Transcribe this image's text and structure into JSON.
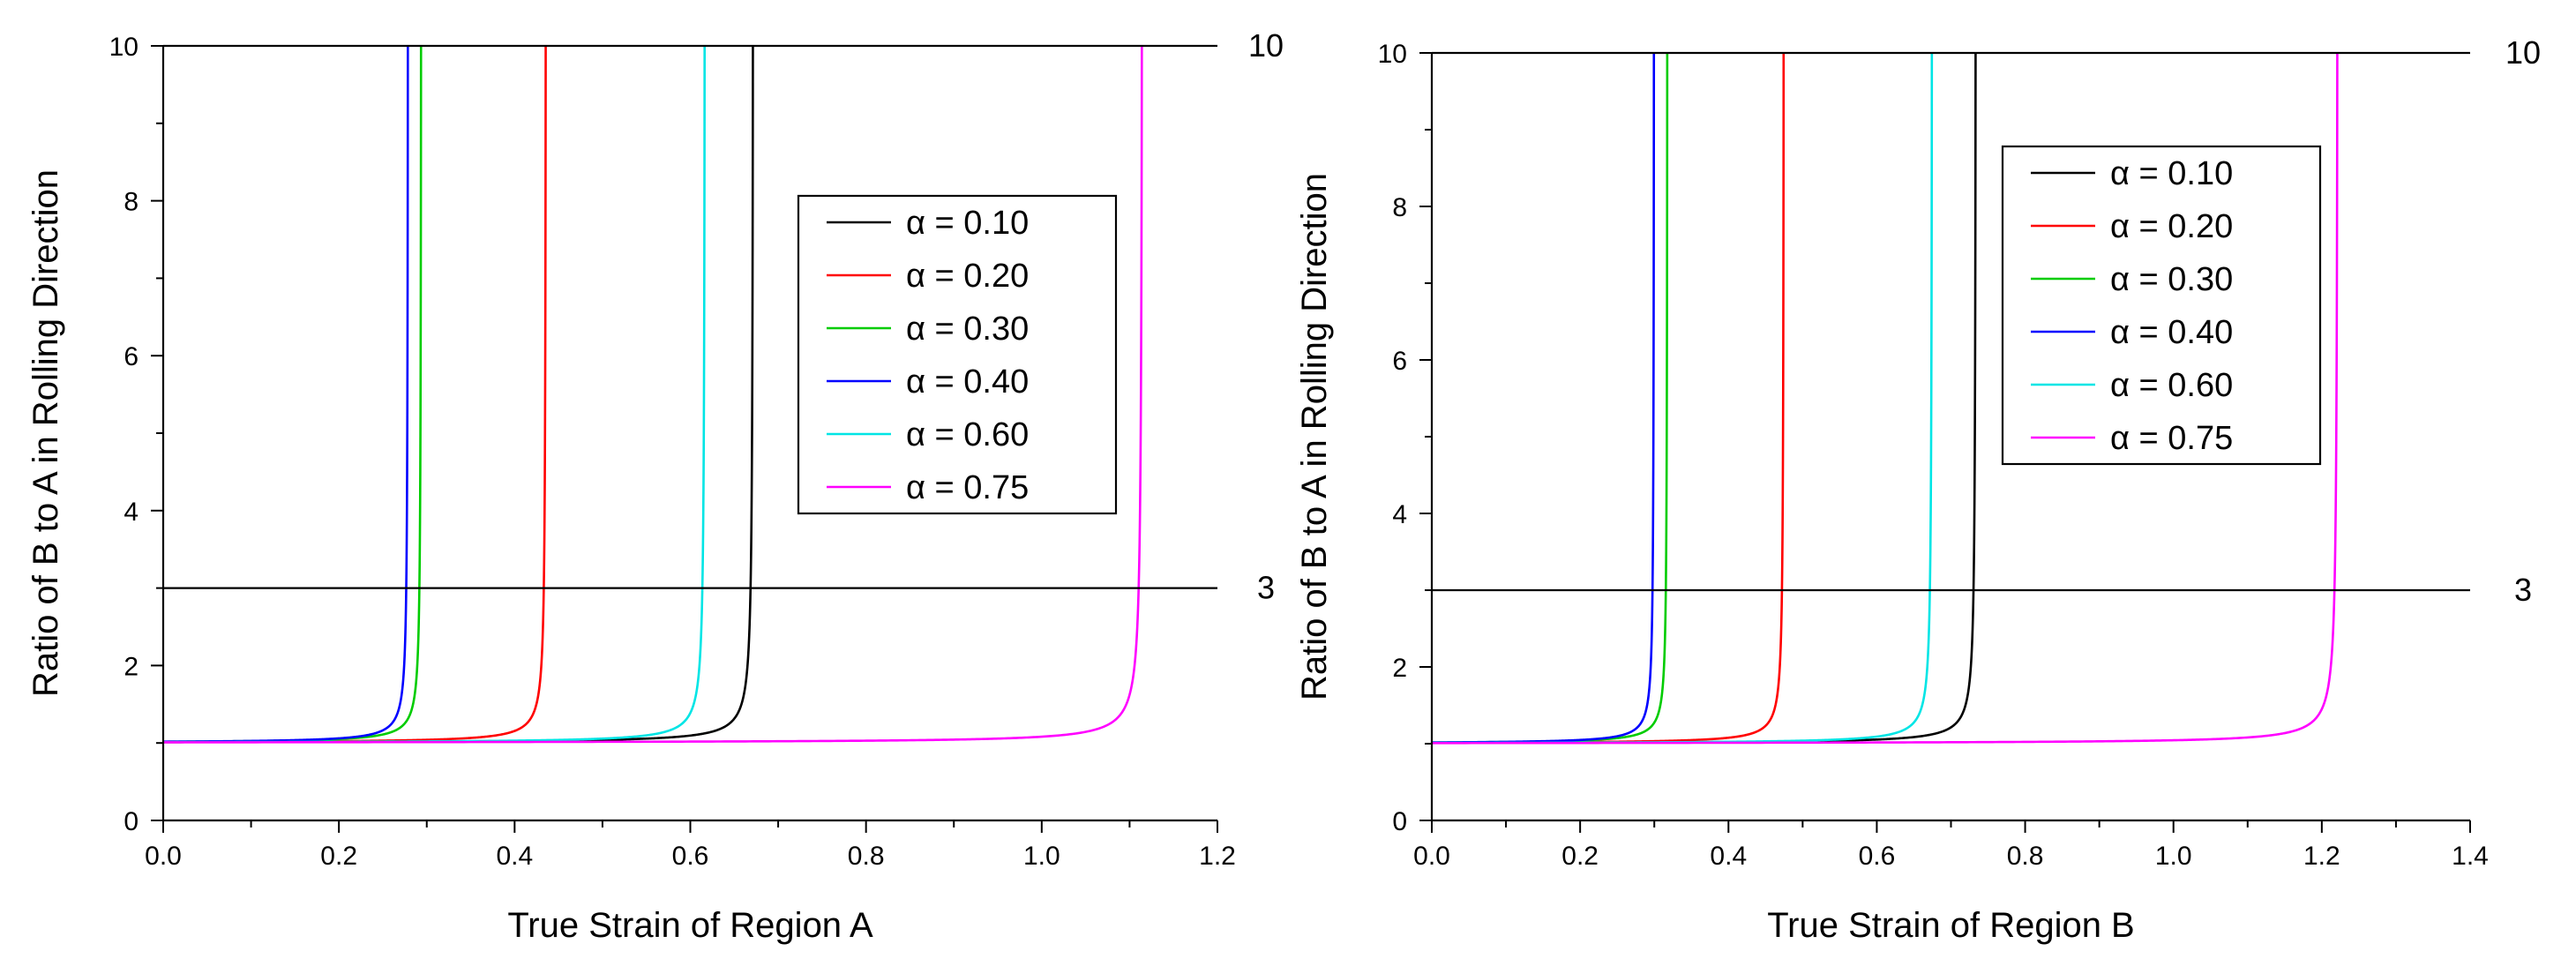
{
  "chart_data": [
    {
      "type": "line",
      "title": "",
      "xlabel": "True Strain of Region A",
      "ylabel": "Ratio of B to A in Rolling Direction",
      "xlim": [
        0.0,
        1.2
      ],
      "ylim": [
        0,
        10
      ],
      "x_ticks": [
        "0.0",
        "0.2",
        "0.4",
        "0.6",
        "0.8",
        "1.0",
        "1.2"
      ],
      "y_ticks": [
        "0",
        "2",
        "4",
        "6",
        "8",
        "10"
      ],
      "reference_lines": [
        {
          "y": 10,
          "label": "10"
        },
        {
          "y": 3,
          "label": "3"
        }
      ],
      "legend_position": "upper-right",
      "series": [
        {
          "name": "α = 0.10",
          "color": "#000000",
          "x_asymptote": 0.672
        },
        {
          "name": "α = 0.20",
          "color": "#ff0000",
          "x_asymptote": 0.436
        },
        {
          "name": "α = 0.30",
          "color": "#00cc00",
          "x_asymptote": 0.294
        },
        {
          "name": "α = 0.40",
          "color": "#0000ff",
          "x_asymptote": 0.279
        },
        {
          "name": "α = 0.60",
          "color": "#00e5e5",
          "x_asymptote": 0.617
        },
        {
          "name": "α = 0.75",
          "color": "#ff00ff",
          "x_asymptote": 1.115
        }
      ]
    },
    {
      "type": "line",
      "title": "",
      "xlabel": "True Strain of Region B",
      "ylabel": "Ratio of B to A in Rolling Direction",
      "xlim": [
        0.0,
        1.4
      ],
      "ylim": [
        0,
        10
      ],
      "x_ticks": [
        "0.0",
        "0.2",
        "0.4",
        "0.6",
        "0.8",
        "1.0",
        "1.2",
        "1.4"
      ],
      "y_ticks": [
        "0",
        "2",
        "4",
        "6",
        "8",
        "10"
      ],
      "reference_lines": [
        {
          "y": 10,
          "label": "10"
        },
        {
          "y": 3,
          "label": "3"
        }
      ],
      "legend_position": "upper-center",
      "series": [
        {
          "name": "α = 0.10",
          "color": "#000000",
          "x_asymptote": 0.734
        },
        {
          "name": "α = 0.20",
          "color": "#ff0000",
          "x_asymptote": 0.475
        },
        {
          "name": "α = 0.30",
          "color": "#00cc00",
          "x_asymptote": 0.318
        },
        {
          "name": "α = 0.40",
          "color": "#0000ff",
          "x_asymptote": 0.3
        },
        {
          "name": "α = 0.60",
          "color": "#00e5e5",
          "x_asymptote": 0.675
        },
        {
          "name": "α = 0.75",
          "color": "#ff00ff",
          "x_asymptote": 1.222
        }
      ]
    }
  ]
}
